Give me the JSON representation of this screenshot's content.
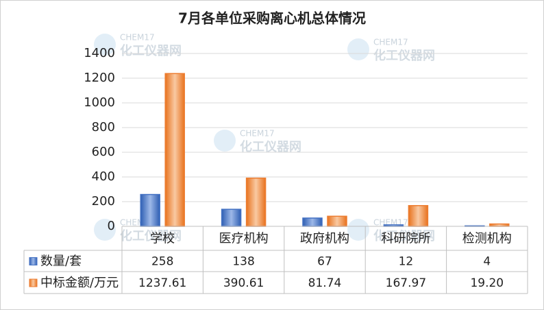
{
  "chart_data": {
    "type": "bar",
    "title": "7月各单位采购离心机总体情况",
    "categories": [
      "学校",
      "医疗机构",
      "政府机构",
      "科研院所",
      "检测机构"
    ],
    "series": [
      {
        "name": "数量/套",
        "color": "#4472c4",
        "values": [
          258,
          138,
          67,
          12,
          4
        ]
      },
      {
        "name": "中标金额/万元",
        "color": "#ed7d31",
        "values": [
          1237.61,
          390.61,
          81.74,
          167.97,
          19.2
        ],
        "value_labels": [
          "1237.61",
          "390.61",
          "81.74",
          "167.97",
          "19.20"
        ]
      }
    ],
    "ylim": [
      0,
      1400
    ],
    "yticks": [
      0,
      200,
      400,
      600,
      800,
      1000,
      1200,
      1400
    ],
    "grid": true,
    "data_table": true,
    "watermark": {
      "brand": "CHEM17",
      "name": "化工仪器网"
    }
  }
}
